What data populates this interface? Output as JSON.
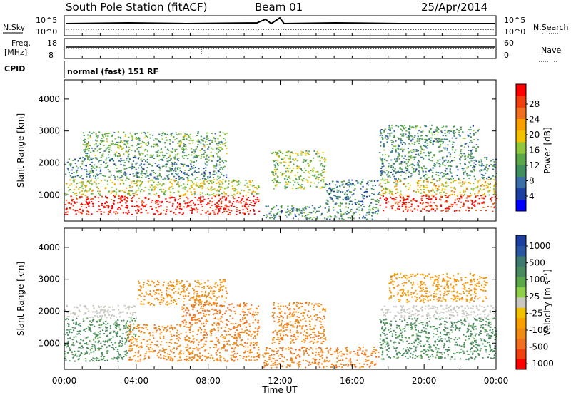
{
  "header": {
    "station": "South Pole Station (fitACF)",
    "beam": "Beam 01",
    "date": "25/Apr/2014"
  },
  "top_panels": {
    "nsky_label": "N.Sky",
    "nsky_ticks": [
      "10^5",
      "10^0"
    ],
    "nsearch_label": "N.Search",
    "nsearch_ticks": [
      "10^5",
      "10^0"
    ],
    "freq_label": "Freq.",
    "freq_unit": "[MHz]",
    "freq_ticks": [
      "18",
      "8"
    ],
    "nave_label": "Nave",
    "nave_ticks": [
      "60",
      "0"
    ],
    "cpid_label": "CPID",
    "cpid_text": "normal (fast) 151 RF"
  },
  "x_axis": {
    "label": "Time UT",
    "ticks": [
      "00:00",
      "04:00",
      "08:00",
      "12:00",
      "16:00",
      "20:00",
      "00:00"
    ],
    "range_hours": [
      0,
      24
    ]
  },
  "power_colorbar": {
    "label": "Power [dB]",
    "ticks": [
      "28",
      "24",
      "20",
      "16",
      "12",
      "8",
      "4"
    ],
    "colors": [
      "#0000ff",
      "#1d3fa0",
      "#3a6fa8",
      "#3f8f5f",
      "#5aa84a",
      "#8fc83c",
      "#f2c200",
      "#f7a000",
      "#f07020",
      "#f04010",
      "#ff0000"
    ]
  },
  "velocity_colorbar": {
    "label": "Velocity [m s⁻¹]",
    "ticks": [
      "1000",
      "500",
      "100",
      "25",
      "-25",
      "-100",
      "-500",
      "-1000"
    ],
    "colors": [
      "#ff0000",
      "#f04010",
      "#f07020",
      "#f08c14",
      "#f7a000",
      "#f2c200",
      "#c8c8c0",
      "#8fd04a",
      "#5aa84a",
      "#4a8a60",
      "#3f7a70",
      "#2a55a0",
      "#1d3fa0"
    ]
  },
  "chart_data": [
    {
      "type": "heatmap",
      "title": "Power",
      "xlabel": "Time UT",
      "ylabel": "Slant Range [km]",
      "xlim": [
        0,
        24
      ],
      "ylim": [
        180,
        4600
      ],
      "yticks": [
        "1000",
        "2000",
        "3000",
        "4000"
      ],
      "ytick_values": [
        1000,
        2000,
        3000,
        4000
      ],
      "colorbar_label": "Power [dB]",
      "colorbar_range": [
        0,
        30
      ],
      "scatter_bands": [
        {
          "t_start": 0.0,
          "t_end": 10.8,
          "range_low": 400,
          "range_high": 1000,
          "value": 29
        },
        {
          "t_start": 0.0,
          "t_end": 10.8,
          "range_low": 1000,
          "range_high": 1500,
          "value": 16
        },
        {
          "t_start": 0.0,
          "t_end": 9.0,
          "range_low": 1500,
          "range_high": 2200,
          "value": 9
        },
        {
          "t_start": 1.0,
          "t_end": 9.0,
          "range_low": 2200,
          "range_high": 3000,
          "value": 12
        },
        {
          "t_start": 11.5,
          "t_end": 14.5,
          "range_low": 1200,
          "range_high": 2400,
          "value": 14
        },
        {
          "t_start": 11.0,
          "t_end": 17.5,
          "range_low": 250,
          "range_high": 700,
          "value": 10
        },
        {
          "t_start": 14.5,
          "t_end": 17.5,
          "range_low": 700,
          "range_high": 1500,
          "value": 8
        },
        {
          "t_start": 17.5,
          "t_end": 24.0,
          "range_low": 500,
          "range_high": 1000,
          "value": 27
        },
        {
          "t_start": 17.5,
          "t_end": 24.0,
          "range_low": 1000,
          "range_high": 1500,
          "value": 18
        },
        {
          "t_start": 17.5,
          "t_end": 24.0,
          "range_low": 1500,
          "range_high": 2200,
          "value": 9
        },
        {
          "t_start": 17.5,
          "t_end": 23.0,
          "range_low": 2200,
          "range_high": 3200,
          "value": 10
        }
      ]
    },
    {
      "type": "heatmap",
      "title": "Velocity",
      "xlabel": "Time UT",
      "ylabel": "Slant Range [km]",
      "xlim": [
        0,
        24
      ],
      "ylim": [
        180,
        4600
      ],
      "yticks": [
        "1000",
        "2000",
        "3000",
        "4000"
      ],
      "ytick_values": [
        1000,
        2000,
        3000,
        4000
      ],
      "colorbar_label": "Velocity [m s⁻¹]",
      "scatter_bands": [
        {
          "t_start": 0.0,
          "t_end": 3.5,
          "range_low": 450,
          "range_high": 1200,
          "value": 150
        },
        {
          "t_start": 0.0,
          "t_end": 4.0,
          "range_low": 1200,
          "range_high": 1800,
          "value": 150
        },
        {
          "t_start": 0.0,
          "t_end": 4.0,
          "range_low": 1800,
          "range_high": 2200,
          "value": 0
        },
        {
          "t_start": 3.5,
          "t_end": 10.8,
          "range_low": 450,
          "range_high": 1600,
          "value": -200
        },
        {
          "t_start": 6.5,
          "t_end": 10.8,
          "range_low": 1600,
          "range_high": 2300,
          "value": -300
        },
        {
          "t_start": 4.0,
          "t_end": 9.0,
          "range_low": 2200,
          "range_high": 3000,
          "value": -150
        },
        {
          "t_start": 11.5,
          "t_end": 14.5,
          "range_low": 1000,
          "range_high": 2300,
          "value": -200
        },
        {
          "t_start": 11.0,
          "t_end": 17.5,
          "range_low": 250,
          "range_high": 900,
          "value": -250
        },
        {
          "t_start": 17.5,
          "t_end": 24.0,
          "range_low": 500,
          "range_high": 1800,
          "value": 150
        },
        {
          "t_start": 17.5,
          "t_end": 24.0,
          "range_low": 1800,
          "range_high": 2200,
          "value": 0
        },
        {
          "t_start": 18.0,
          "t_end": 23.5,
          "range_low": 2300,
          "range_high": 3200,
          "value": -100
        }
      ]
    }
  ]
}
